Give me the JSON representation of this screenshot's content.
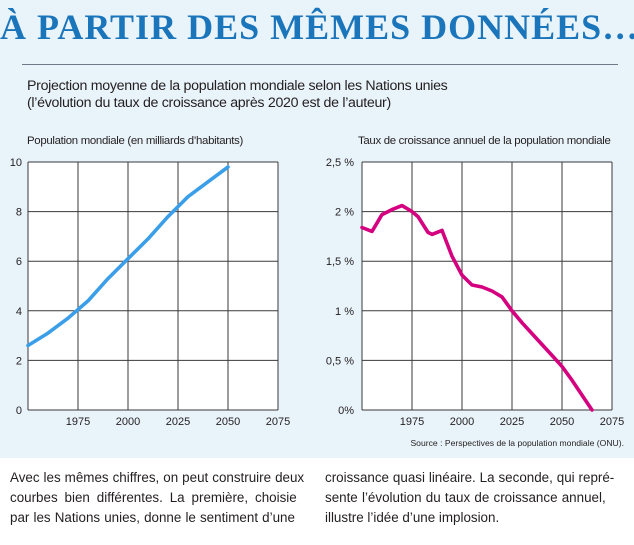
{
  "header": {
    "headline": "À PARTIR DES MÊMES DONNÉES…",
    "subtitle_line1": "Projection moyenne de la population mondiale selon les Nations unies",
    "subtitle_line2": "(l’évolution du taux de croissance après 2020 est de l’auteur)"
  },
  "colors": {
    "background_panel": "#e9f3fa",
    "headline": "#1b75bb",
    "population_line": "#3b9ee8",
    "growth_line": "#d4007f"
  },
  "chart_data": [
    {
      "type": "line",
      "title": "Population mondiale (en milliards d’habitants)",
      "xlabel": "",
      "ylabel": "",
      "x_ticks": [
        "1975",
        "2000",
        "2025",
        "2050",
        "2075"
      ],
      "y_ticks": [
        "0",
        "2",
        "4",
        "6",
        "8",
        "10"
      ],
      "xlim": [
        1950,
        2075
      ],
      "ylim": [
        0,
        10
      ],
      "grid": true,
      "series": [
        {
          "x": [
            1950,
            1960,
            1970,
            1980,
            1990,
            2000,
            2010,
            2020,
            2030,
            2040,
            2050
          ],
          "values": [
            2.6,
            3.1,
            3.7,
            4.4,
            5.3,
            6.1,
            6.9,
            7.8,
            8.6,
            9.2,
            9.8
          ]
        }
      ]
    },
    {
      "type": "line",
      "title": "Taux de croissance annuel de la population mondiale",
      "xlabel": "",
      "ylabel": "",
      "x_ticks": [
        "1975",
        "2000",
        "2025",
        "2050",
        "2075"
      ],
      "y_ticks": [
        "0%",
        "0,5 %",
        "1 %",
        "1,5 %",
        "2 %",
        "2,5 %"
      ],
      "xlim": [
        1950,
        2075
      ],
      "ylim": [
        0,
        2.5
      ],
      "grid": true,
      "series": [
        {
          "x": [
            1950,
            1955,
            1960,
            1965,
            1970,
            1975,
            1978,
            1983,
            1985,
            1990,
            1995,
            2000,
            2005,
            2010,
            2015,
            2020,
            2025,
            2030,
            2035,
            2040,
            2045,
            2050,
            2055,
            2060,
            2065
          ],
          "values": [
            1.84,
            1.8,
            1.97,
            2.02,
            2.06,
            2.0,
            1.95,
            1.79,
            1.77,
            1.81,
            1.55,
            1.36,
            1.26,
            1.24,
            1.2,
            1.14,
            1.0,
            0.88,
            0.77,
            0.66,
            0.55,
            0.44,
            0.3,
            0.15,
            0.0
          ]
        }
      ],
      "source_label": "Source :",
      "source_text": "Perspectives de la population mondiale (ONU)."
    }
  ],
  "body_text": {
    "left_line1": "Avec les mêmes chiffres, on peut construire deux",
    "left_line2": "courbes bien différentes. La première, choisie",
    "left_line3": "par les Nations unies, donne le sentiment d’une",
    "right_line1": "croissance quasi linéaire. La seconde, qui repré-",
    "right_line2": "sente l’évolution du taux de croissance annuel,",
    "right_line3": "illustre l’idée d’une implosion."
  }
}
